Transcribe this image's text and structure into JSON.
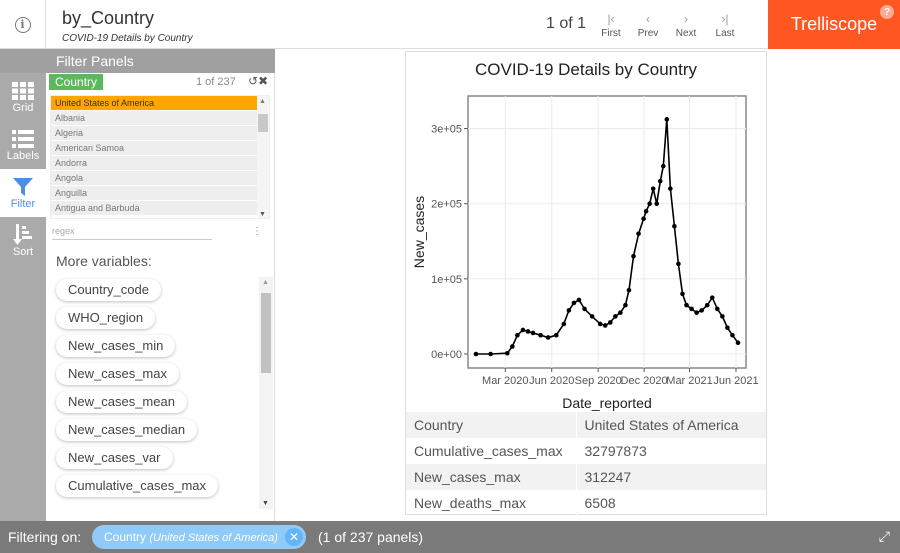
{
  "header": {
    "info_icon": "info-icon",
    "title": "by_Country",
    "subtitle": "COVID-19 Details by Country",
    "page_info": "1 of 1",
    "nav": [
      {
        "symbol": "|‹",
        "label": "First"
      },
      {
        "symbol": "‹",
        "label": "Prev"
      },
      {
        "symbol": "›",
        "label": "Next"
      },
      {
        "symbol": "›|",
        "label": "Last"
      }
    ],
    "brand": "Trelliscope",
    "help": "?"
  },
  "sidebar": {
    "items": [
      {
        "label": "Grid",
        "icon": "grid-icon"
      },
      {
        "label": "Labels",
        "icon": "list-icon"
      },
      {
        "label": "Filter",
        "icon": "filter-icon"
      },
      {
        "label": "Sort",
        "icon": "sort-icon"
      }
    ],
    "active": "Filter"
  },
  "filter_panel": {
    "heading": "Filter Panels",
    "country_label": "Country",
    "country_count": "1 of 237",
    "countries": [
      "United States of America",
      "Albania",
      "Algeria",
      "American Samoa",
      "Andorra",
      "Angola",
      "Anguilla",
      "Antigua and Barbuda"
    ],
    "selected": "United States of America",
    "regex_placeholder": "regex",
    "more_vars_label": "More variables:",
    "variables": [
      "Country_code",
      "WHO_region",
      "New_cases_min",
      "New_cases_max",
      "New_cases_mean",
      "New_cases_median",
      "New_cases_var",
      "Cumulative_cases_max"
    ]
  },
  "panel": {
    "title": "COVID-19 Details by Country",
    "meta": [
      {
        "key": "Country",
        "value": "United States of America"
      },
      {
        "key": "Cumulative_cases_max",
        "value": "32797873"
      },
      {
        "key": "New_cases_max",
        "value": "312247"
      },
      {
        "key": "New_deaths_max",
        "value": "6508"
      }
    ]
  },
  "chart_data": {
    "type": "line",
    "title": "COVID-19 Details by Country",
    "xlabel": "Date_reported",
    "ylabel": "New_cases",
    "x_ticks": [
      "Mar 2020",
      "Jun 2020",
      "Sep 2020",
      "Dec 2020",
      "Mar 2021",
      "Jun 2021"
    ],
    "y_ticks": [
      "0e+00",
      "1e+05",
      "2e+05",
      "3e+05"
    ],
    "ylim": [
      0,
      330000
    ],
    "x_range": [
      "2020-01-03",
      "2021-06-05"
    ],
    "series": [
      {
        "x": [
          "2020-01-03",
          "2020-02-01",
          "2020-03-05",
          "2020-03-15",
          "2020-03-25",
          "2020-04-05",
          "2020-04-15",
          "2020-04-25",
          "2020-05-10",
          "2020-05-25",
          "2020-06-10",
          "2020-06-25",
          "2020-07-05",
          "2020-07-15",
          "2020-07-25",
          "2020-08-05",
          "2020-08-20",
          "2020-09-05",
          "2020-09-15",
          "2020-09-25",
          "2020-10-05",
          "2020-10-15",
          "2020-10-25",
          "2020-11-01",
          "2020-11-10",
          "2020-11-20",
          "2020-11-30",
          "2020-12-05",
          "2020-12-12",
          "2020-12-19",
          "2020-12-26",
          "2021-01-02",
          "2021-01-08",
          "2021-01-15",
          "2021-01-22",
          "2021-01-30",
          "2021-02-07",
          "2021-02-15",
          "2021-02-23",
          "2021-03-05",
          "2021-03-15",
          "2021-03-25",
          "2021-04-05",
          "2021-04-15",
          "2021-04-25",
          "2021-05-05",
          "2021-05-15",
          "2021-05-25",
          "2021-06-05"
        ],
        "values": [
          0,
          0,
          1000,
          10000,
          25000,
          32000,
          30000,
          28000,
          25000,
          22000,
          25000,
          40000,
          58000,
          68000,
          72000,
          60000,
          50000,
          40000,
          38000,
          42000,
          50000,
          55000,
          65000,
          85000,
          130000,
          160000,
          180000,
          190000,
          200000,
          220000,
          200000,
          230000,
          250000,
          312247,
          220000,
          170000,
          120000,
          80000,
          65000,
          60000,
          55000,
          58000,
          65000,
          75000,
          60000,
          50000,
          35000,
          25000,
          15000
        ]
      }
    ]
  },
  "footer": {
    "filtering_on": "Filtering on:",
    "filter_key": "Country",
    "filter_value": "(United States of America)",
    "panel_count": "(1 of 237 panels)"
  }
}
